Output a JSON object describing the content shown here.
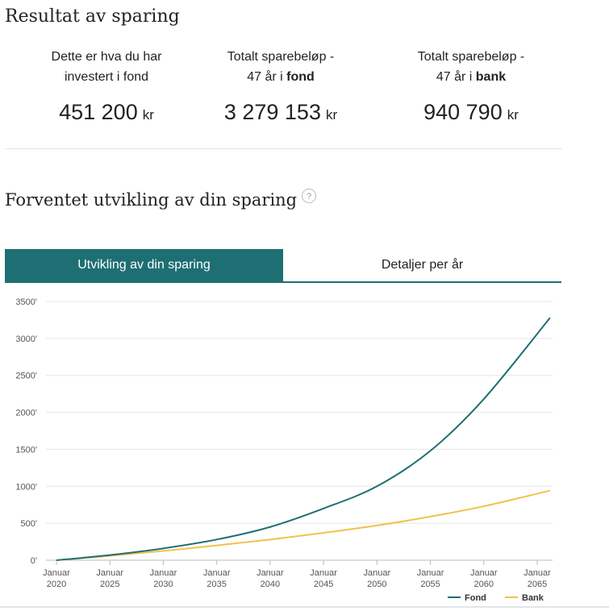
{
  "result": {
    "title": "Resultat av sparing",
    "stats": [
      {
        "line1": "Dette er hva du har",
        "line2": "investert i fond",
        "line2_bold": "",
        "value": "451 200",
        "unit": "kr"
      },
      {
        "line1": "Totalt sparebeløp -",
        "line2": "47 år i ",
        "line2_bold": "fond",
        "value": "3 279 153",
        "unit": "kr"
      },
      {
        "line1": "Totalt sparebeløp -",
        "line2": "47 år i ",
        "line2_bold": "bank",
        "value": "940 790",
        "unit": "kr"
      }
    ]
  },
  "development": {
    "title": "Forventet utvikling av din sparing",
    "help_icon": "?"
  },
  "tabs": [
    {
      "label": "Utvikling av din sparing",
      "active": true
    },
    {
      "label": "Detaljer per år",
      "active": false
    }
  ],
  "colors": {
    "accent": "#1e6f73",
    "fond": "#1e6f73",
    "bank": "#f2c14e",
    "grid": "#e5e5e5"
  },
  "chart_data": {
    "type": "line",
    "x_ticks": [
      [
        "Januar",
        "2020"
      ],
      [
        "Januar",
        "2025"
      ],
      [
        "Januar",
        "2030"
      ],
      [
        "Januar",
        "2035"
      ],
      [
        "Januar",
        "2040"
      ],
      [
        "Januar",
        "2045"
      ],
      [
        "Januar",
        "2050"
      ],
      [
        "Januar",
        "2055"
      ],
      [
        "Januar",
        "2060"
      ],
      [
        "Januar",
        "2065"
      ]
    ],
    "x_tick_years": [
      2020,
      2025,
      2030,
      2035,
      2040,
      2045,
      2050,
      2055,
      2060,
      2065
    ],
    "xlim": [
      2020,
      2066.2
    ],
    "y_ticks": [
      "0'",
      "500'",
      "1000'",
      "1500'",
      "2000'",
      "2500'",
      "3000'",
      "3500'"
    ],
    "y_tick_values": [
      0,
      500,
      1000,
      1500,
      2000,
      2500,
      3000,
      3500
    ],
    "ylim": [
      0,
      3500
    ],
    "x": [
      2020,
      2025,
      2030,
      2035,
      2040,
      2045,
      2050,
      2055,
      2060,
      2066.2
    ],
    "series": [
      {
        "name": "Fond",
        "values": [
          0,
          70,
          160,
          280,
          450,
          700,
          1000,
          1480,
          2180,
          3279
        ]
      },
      {
        "name": "Bank",
        "values": [
          0,
          60,
          125,
          200,
          280,
          370,
          470,
          590,
          730,
          941
        ]
      }
    ],
    "legend_position": "bottom-right"
  }
}
